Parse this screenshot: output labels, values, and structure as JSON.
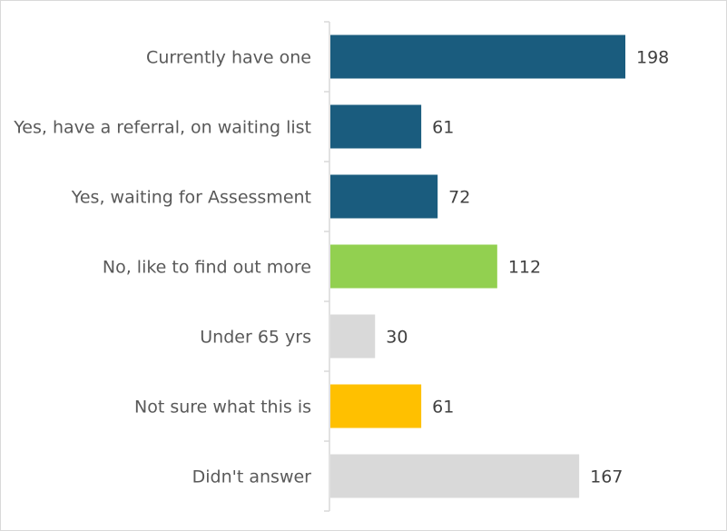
{
  "chart_data": {
    "type": "bar",
    "orientation": "horizontal",
    "title": "",
    "xlabel": "",
    "ylabel": "",
    "categories": [
      "Currently have one",
      "Yes, have a referral, on waiting list",
      "Yes, waiting for Assessment",
      "No, like to find out more",
      "Under 65 yrs",
      "Not sure what this is",
      "Didn't answer"
    ],
    "values": [
      198,
      61,
      72,
      112,
      30,
      61,
      167
    ],
    "bar_colors": [
      "#1a5c7e",
      "#1a5c7e",
      "#1a5c7e",
      "#92d050",
      "#d9d9d9",
      "#ffc000",
      "#d9d9d9"
    ],
    "xlim": [
      0,
      250
    ],
    "data_labels": true,
    "gridlines": false,
    "legend": "none"
  }
}
